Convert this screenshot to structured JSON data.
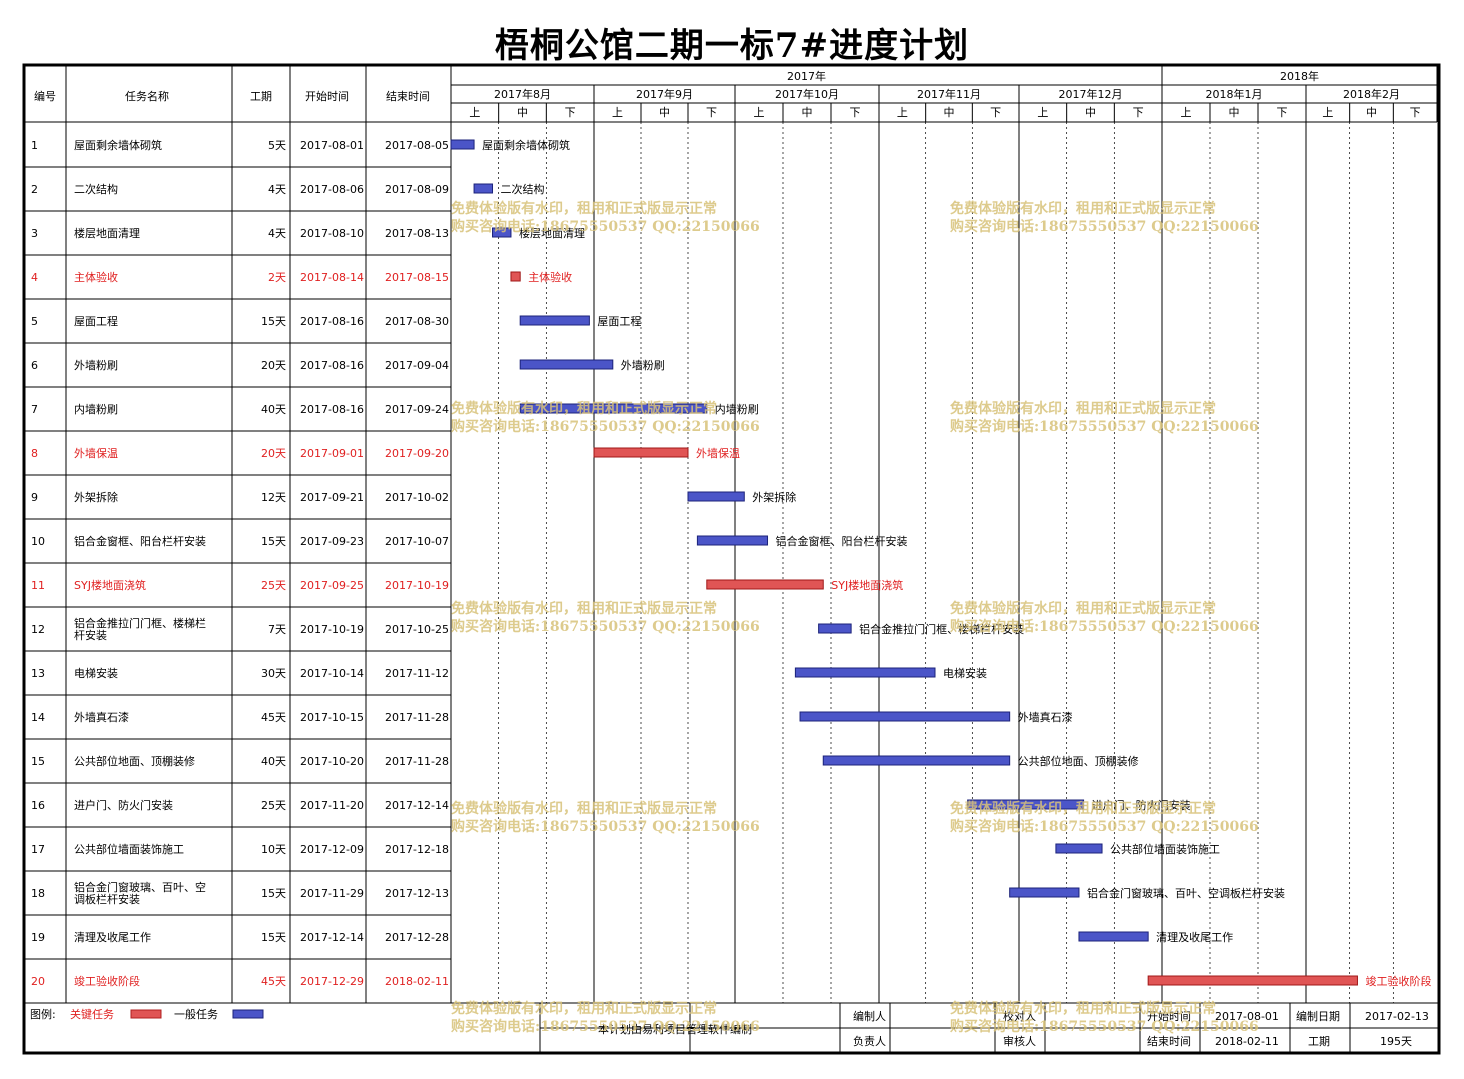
{
  "title": "梧桐公馆二期一标7#进度计划",
  "colors": {
    "critical_fill": "#e05555",
    "critical_text": "#e02020",
    "normal_fill": "#4b55c8",
    "grid": "#000000",
    "watermark": "#d8c27a"
  },
  "table_headers": {
    "no": "编号",
    "name": "任务名称",
    "duration": "工期",
    "start": "开始时间",
    "end": "结束时间"
  },
  "timeline": {
    "years": [
      "2017年",
      "2018年"
    ],
    "months": [
      "2017年8月",
      "2017年9月",
      "2017年10月",
      "2017年11月",
      "2017年12月",
      "2018年1月",
      "2018年2月"
    ],
    "dekads": [
      "上",
      "中",
      "下"
    ]
  },
  "chart_data": {
    "type": "gantt",
    "title": "梧桐公馆二期一标7#进度计划",
    "x_range": [
      "2017-08-01",
      "2018-02-15"
    ],
    "tasks": [
      {
        "no": "1",
        "name": "屋面剩余墙体砌筑",
        "duration": "5天",
        "start": "2017-08-01",
        "end": "2017-08-05",
        "critical": false
      },
      {
        "no": "2",
        "name": "二次结构",
        "duration": "4天",
        "start": "2017-08-06",
        "end": "2017-08-09",
        "critical": false
      },
      {
        "no": "3",
        "name": "楼层地面清理",
        "duration": "4天",
        "start": "2017-08-10",
        "end": "2017-08-13",
        "critical": false
      },
      {
        "no": "4",
        "name": "主体验收",
        "duration": "2天",
        "start": "2017-08-14",
        "end": "2017-08-15",
        "critical": true
      },
      {
        "no": "5",
        "name": "屋面工程",
        "duration": "15天",
        "start": "2017-08-16",
        "end": "2017-08-30",
        "critical": false
      },
      {
        "no": "6",
        "name": "外墙粉刷",
        "duration": "20天",
        "start": "2017-08-16",
        "end": "2017-09-04",
        "critical": false
      },
      {
        "no": "7",
        "name": "内墙粉刷",
        "duration": "40天",
        "start": "2017-08-16",
        "end": "2017-09-24",
        "critical": false
      },
      {
        "no": "8",
        "name": "外墙保温",
        "duration": "20天",
        "start": "2017-09-01",
        "end": "2017-09-20",
        "critical": true
      },
      {
        "no": "9",
        "name": "外架拆除",
        "duration": "12天",
        "start": "2017-09-21",
        "end": "2017-10-02",
        "critical": false
      },
      {
        "no": "10",
        "name": "铝合金窗框、阳台栏杆安装",
        "duration": "15天",
        "start": "2017-09-23",
        "end": "2017-10-07",
        "critical": false
      },
      {
        "no": "11",
        "name": "SYJ楼地面浇筑",
        "duration": "25天",
        "start": "2017-09-25",
        "end": "2017-10-19",
        "critical": true
      },
      {
        "no": "12",
        "name": "铝合金推拉门门框、楼梯栏杆安装",
        "duration": "7天",
        "start": "2017-10-19",
        "end": "2017-10-25",
        "critical": false
      },
      {
        "no": "13",
        "name": "电梯安装",
        "duration": "30天",
        "start": "2017-10-14",
        "end": "2017-11-12",
        "critical": false
      },
      {
        "no": "14",
        "name": "外墙真石漆",
        "duration": "45天",
        "start": "2017-10-15",
        "end": "2017-11-28",
        "critical": false
      },
      {
        "no": "15",
        "name": "公共部位地面、顶棚装修",
        "duration": "40天",
        "start": "2017-10-20",
        "end": "2017-11-28",
        "critical": false
      },
      {
        "no": "16",
        "name": "进户门、防火门安装",
        "duration": "25天",
        "start": "2017-11-20",
        "end": "2017-12-14",
        "critical": false
      },
      {
        "no": "17",
        "name": "公共部位墙面装饰施工",
        "duration": "10天",
        "start": "2017-12-09",
        "end": "2017-12-18",
        "critical": false
      },
      {
        "no": "18",
        "name": "铝合金门窗玻璃、百叶、空调板栏杆安装",
        "duration": "15天",
        "start": "2017-11-29",
        "end": "2017-12-13",
        "critical": false
      },
      {
        "no": "19",
        "name": "清理及收尾工作",
        "duration": "15天",
        "start": "2017-12-14",
        "end": "2017-12-28",
        "critical": false
      },
      {
        "no": "20",
        "name": "竣工验收阶段",
        "duration": "45天",
        "start": "2017-12-29",
        "end": "2018-02-11",
        "critical": true
      }
    ]
  },
  "legend": {
    "label": "图例:",
    "critical": "关键任务",
    "normal": "一般任务"
  },
  "footer": {
    "software": "本计划由易利项目管理软件编制",
    "software_tail": "件编制",
    "editor_label": "编制人",
    "owner_label": "负责人",
    "checker_label": "校对人",
    "reviewer_label": "审核人",
    "start_label": "开始时间",
    "start_value": "2017-08-01",
    "end_label": "结束时间",
    "end_value": "2018-02-11",
    "made_date_label": "编制日期",
    "made_date_value": "2017-02-13",
    "duration_label": "工期",
    "duration_value": "195天"
  },
  "watermark": {
    "line1": "免费体验版有水印，租用和正式版显示正常",
    "line2": "购买咨询电话:18675550537 QQ:22150066"
  }
}
